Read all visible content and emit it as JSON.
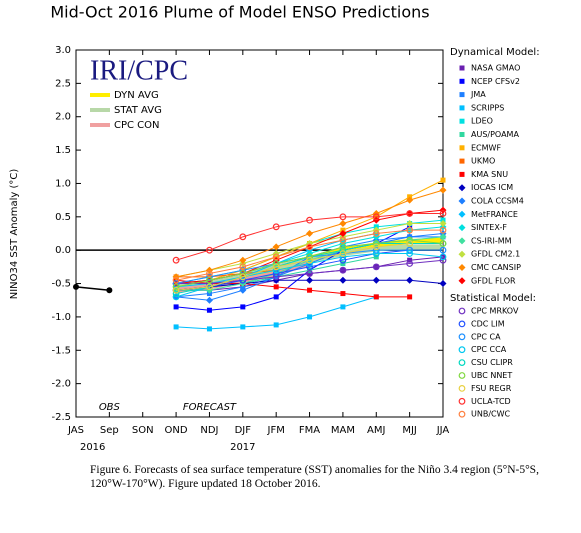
{
  "chart_data": {
    "type": "line",
    "title": "Mid-Oct 2016 Plume of Model ENSO Predictions",
    "ylabel": "NINO34 SST Anomaly (°C)",
    "logo": "IRI/CPC",
    "categories": [
      "JAS",
      "Sep",
      "SON",
      "OND",
      "NDJ",
      "DJF",
      "JFM",
      "FMA",
      "MAM",
      "AMJ",
      "MJJ",
      "JJA"
    ],
    "years": [
      {
        "index": 0.5,
        "label": "2016"
      },
      {
        "index": 5,
        "label": "2017"
      }
    ],
    "annotations": [
      {
        "index": 1,
        "text": "OBS"
      },
      {
        "index": 4,
        "text": "FORECAST"
      }
    ],
    "ylim": [
      -2.5,
      3
    ],
    "yticks": [
      {
        "value": 3,
        "label": "3.0"
      },
      2.5,
      {
        "value": 2,
        "label": "2.0"
      },
      1.5,
      {
        "value": 1,
        "label": "1.0"
      },
      0.5,
      {
        "value": 0,
        "label": "0.0"
      },
      -0.5,
      {
        "value": -1,
        "label": "-1.0"
      },
      -1.5,
      {
        "value": -2,
        "label": "-2.0"
      },
      -2.5
    ],
    "zero_line": true,
    "observed": {
      "color": "#000000",
      "values": [
        -0.55,
        -0.6,
        null,
        null,
        null,
        null,
        null,
        null,
        null,
        null,
        null,
        null
      ]
    },
    "averages": [
      {
        "name": "DYN AVG",
        "color": "#ffee00",
        "values": [
          null,
          null,
          null,
          -0.55,
          -0.5,
          -0.42,
          -0.28,
          -0.12,
          0.0,
          0.08,
          0.13,
          0.15
        ]
      },
      {
        "name": "STAT AVG",
        "color": "#b8d8a8",
        "values": [
          null,
          null,
          null,
          -0.55,
          -0.48,
          -0.38,
          -0.25,
          -0.15,
          -0.05,
          0.02,
          0.05,
          0.05
        ]
      },
      {
        "name": "CPC CON",
        "color": "#f0a0a0",
        "values": [
          null,
          null,
          null,
          -0.6,
          -0.55,
          -0.45,
          -0.35,
          -0.2,
          null,
          null,
          null,
          null
        ]
      }
    ],
    "dynamical_models": {
      "title": "Dynamical Model:",
      "series": [
        {
          "name": "NASA GMAO",
          "color": "#6a1fb0",
          "marker": "square",
          "values": [
            null,
            null,
            null,
            -0.6,
            -0.6,
            -0.55,
            -0.45,
            -0.35,
            -0.3,
            -0.25,
            -0.15,
            -0.1
          ]
        },
        {
          "name": "NCEP CFSv2",
          "color": "#0000ff",
          "marker": "square",
          "values": [
            null,
            null,
            null,
            -0.85,
            -0.9,
            -0.85,
            -0.7,
            -0.3,
            0.0,
            0.1,
            0.35,
            null
          ]
        },
        {
          "name": "JMA",
          "color": "#1e7fff",
          "marker": "square",
          "values": [
            null,
            null,
            null,
            -0.7,
            -0.65,
            -0.55,
            -0.4,
            -0.2,
            0.0,
            0.1,
            0.2,
            0.2
          ]
        },
        {
          "name": "SCRIPPS",
          "color": "#00bfff",
          "marker": "square",
          "values": [
            null,
            null,
            null,
            -1.15,
            -1.18,
            -1.15,
            -1.12,
            -1.0,
            -0.85,
            -0.7,
            null,
            null
          ]
        },
        {
          "name": "LDEO",
          "color": "#00e0e0",
          "marker": "square",
          "values": [
            null,
            null,
            null,
            -0.5,
            -0.4,
            -0.3,
            -0.1,
            0.1,
            0.25,
            0.35,
            0.4,
            0.45
          ]
        },
        {
          "name": "AUS/POAMA",
          "color": "#30d8a0",
          "marker": "square",
          "values": [
            null,
            null,
            null,
            -0.6,
            -0.55,
            -0.5,
            -0.4,
            -0.3,
            -0.2,
            -0.1,
            null,
            null
          ]
        },
        {
          "name": "ECMWF",
          "color": "#ffb000",
          "marker": "square",
          "values": [
            null,
            null,
            null,
            -0.5,
            -0.45,
            -0.3,
            -0.1,
            0.1,
            0.3,
            0.5,
            0.8,
            1.05
          ]
        },
        {
          "name": "UKMO",
          "color": "#ff6600",
          "marker": "square",
          "values": [
            null,
            null,
            null,
            -0.4,
            -0.4,
            -0.35,
            -0.3,
            null,
            null,
            null,
            null,
            null
          ]
        },
        {
          "name": "KMA SNU",
          "color": "#ff0000",
          "marker": "square",
          "values": [
            null,
            null,
            null,
            -0.45,
            -0.5,
            -0.5,
            -0.55,
            -0.6,
            -0.65,
            -0.7,
            -0.7,
            null
          ]
        },
        {
          "name": "IOCAS ICM",
          "color": "#0000c0",
          "marker": "diamond",
          "values": [
            null,
            null,
            null,
            -0.6,
            -0.55,
            -0.5,
            -0.45,
            -0.45,
            -0.45,
            -0.45,
            -0.45,
            -0.5
          ]
        },
        {
          "name": "COLA CCSM4",
          "color": "#1e7fff",
          "marker": "diamond",
          "values": [
            null,
            null,
            null,
            -0.7,
            -0.75,
            -0.6,
            -0.4,
            -0.1,
            0.05,
            0.15,
            0.2,
            0.25
          ]
        },
        {
          "name": "MetFRANCE",
          "color": "#00bfff",
          "marker": "diamond",
          "values": [
            null,
            null,
            null,
            -0.55,
            -0.5,
            -0.4,
            -0.2,
            0.0,
            0.15,
            0.25,
            null,
            null
          ]
        },
        {
          "name": "SINTEX-F",
          "color": "#00e0e0",
          "marker": "diamond",
          "values": [
            null,
            null,
            null,
            -0.5,
            -0.45,
            -0.35,
            -0.2,
            -0.05,
            0.1,
            0.2,
            0.3,
            0.35
          ]
        },
        {
          "name": "CS-IRI-MM",
          "color": "#40e0a0",
          "marker": "diamond",
          "values": [
            null,
            null,
            null,
            -0.6,
            -0.6,
            -0.5,
            -0.35,
            -0.15,
            0.0,
            0.1,
            0.15,
            0.2
          ]
        },
        {
          "name": "GFDL CM2.1",
          "color": "#c0e040",
          "marker": "diamond",
          "values": [
            null,
            null,
            null,
            -0.4,
            -0.3,
            -0.2,
            -0.05,
            0.1,
            0.2,
            0.3,
            0.4,
            0.4
          ]
        },
        {
          "name": "CMC CANSIP",
          "color": "#ff8800",
          "marker": "diamond",
          "values": [
            null,
            null,
            null,
            -0.4,
            -0.3,
            -0.15,
            0.05,
            0.25,
            0.4,
            0.55,
            0.75,
            0.9
          ]
        },
        {
          "name": "GFDL FLOR",
          "color": "#ff0000",
          "marker": "diamond",
          "values": [
            null,
            null,
            null,
            -0.5,
            -0.45,
            -0.35,
            -0.15,
            0.05,
            0.25,
            0.45,
            0.55,
            0.6
          ]
        }
      ]
    },
    "statistical_models": {
      "title": "Statistical Model:",
      "series": [
        {
          "name": "CPC MRKOV",
          "color": "#7030c0",
          "marker": "circle",
          "values": [
            null,
            null,
            null,
            -0.5,
            -0.5,
            -0.45,
            -0.4,
            -0.35,
            -0.3,
            -0.25,
            -0.2,
            -0.15
          ]
        },
        {
          "name": "CDC LIM",
          "color": "#2050ff",
          "marker": "circle",
          "values": [
            null,
            null,
            null,
            -0.6,
            -0.55,
            -0.45,
            -0.35,
            -0.25,
            -0.15,
            -0.05,
            0.0,
            null
          ]
        },
        {
          "name": "CPC CA",
          "color": "#1e90ff",
          "marker": "circle",
          "values": [
            null,
            null,
            null,
            -0.5,
            -0.4,
            -0.3,
            -0.2,
            -0.1,
            -0.05,
            0.0,
            0.0,
            0.0
          ]
        },
        {
          "name": "CPC CCA",
          "color": "#00c8f0",
          "marker": "circle",
          "values": [
            null,
            null,
            null,
            -0.7,
            -0.55,
            -0.4,
            -0.3,
            -0.2,
            -0.1,
            -0.05,
            -0.05,
            -0.1
          ]
        },
        {
          "name": "CSU CLIPR",
          "color": "#00d8c0",
          "marker": "circle",
          "values": [
            null,
            null,
            null,
            -0.65,
            -0.55,
            -0.4,
            -0.25,
            -0.1,
            0.0,
            0.1,
            0.1,
            0.1
          ]
        },
        {
          "name": "UBC NNET",
          "color": "#80d840",
          "marker": "circle",
          "values": [
            null,
            null,
            null,
            -0.55,
            -0.45,
            -0.35,
            -0.2,
            -0.1,
            0.05,
            0.1,
            0.15,
            0.1
          ]
        },
        {
          "name": "FSU REGR",
          "color": "#e8d040",
          "marker": "circle",
          "values": [
            null,
            null,
            null,
            -0.6,
            -0.55,
            -0.4,
            -0.25,
            -0.15,
            -0.05,
            0.05,
            0.1,
            null
          ]
        },
        {
          "name": "UCLA-TCD",
          "color": "#ff3030",
          "marker": "circle",
          "values": [
            null,
            null,
            null,
            -0.15,
            0.0,
            0.2,
            0.35,
            0.45,
            0.5,
            0.5,
            0.55,
            0.55
          ]
        },
        {
          "name": "UNB/CWC",
          "color": "#ff8040",
          "marker": "circle",
          "values": [
            null,
            null,
            null,
            -0.45,
            -0.35,
            -0.25,
            -0.1,
            0.05,
            0.15,
            0.25,
            0.3,
            0.3
          ]
        }
      ]
    },
    "caption": "Figure 6. Forecasts of sea surface temperature (SST) anomalies for the Niño 3.4 region (5°N-5°S, 120°W-170°W). Figure updated 18 October 2016."
  }
}
